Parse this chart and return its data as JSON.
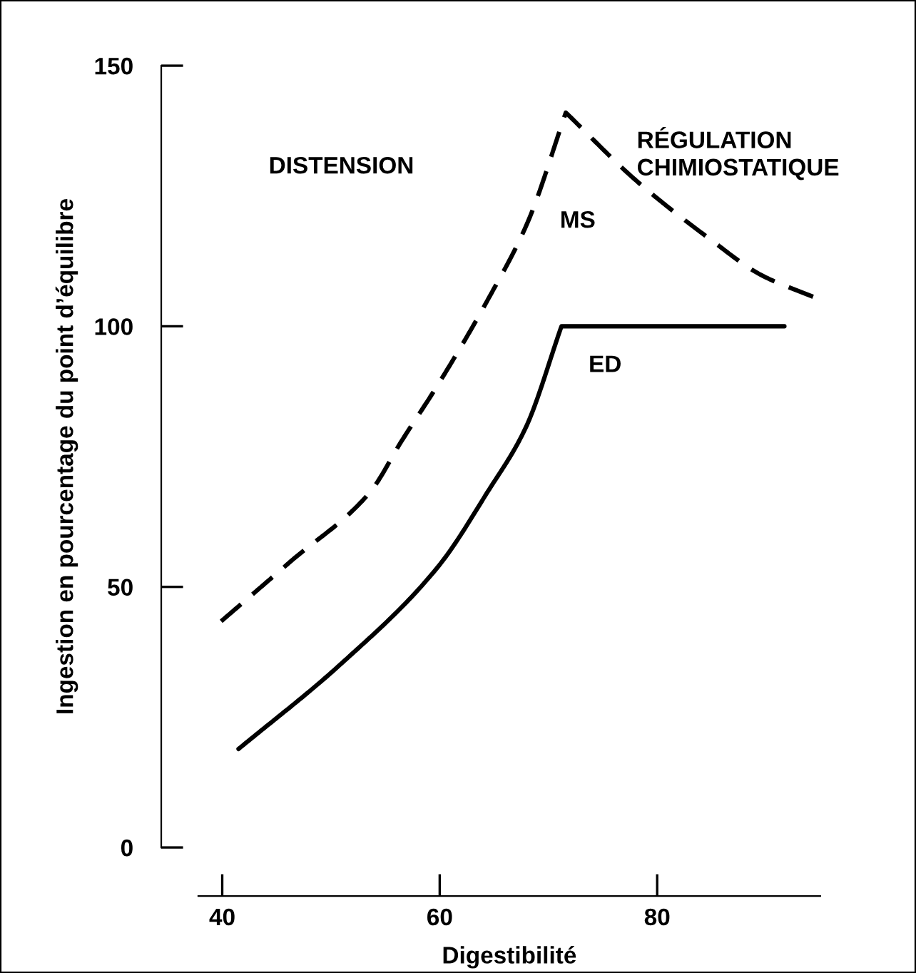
{
  "chart_data": {
    "type": "line",
    "xlabel": "Digestibilité",
    "ylabel": "Ingestion en pourcentage du point d’équilibre",
    "xlim": [
      37.8,
      95
    ],
    "ylim": [
      0,
      150
    ],
    "xticks": [
      40,
      60,
      80
    ],
    "yticks": [
      0,
      50,
      100,
      150
    ],
    "grid": false,
    "legend": false,
    "marker": "none",
    "series": [
      {
        "name": "MS",
        "color": "#000000",
        "line_style": "dashed",
        "x": [
          39.9,
          46.3,
          53.6,
          56.5,
          59.9,
          64.4,
          68.1,
          71.6,
          78.1,
          85,
          89.5,
          94.4
        ],
        "values": [
          43.4,
          54.9,
          68.2,
          78,
          89,
          105,
          120,
          141,
          127.9,
          116.5,
          109.9,
          105.6
        ]
      },
      {
        "name": "ED",
        "color": "#000000",
        "line_style": "solid",
        "x": [
          41.5,
          50.8,
          59.9,
          64.4,
          67.9,
          71.2,
          91.7
        ],
        "values": [
          18.9,
          35,
          54,
          68.2,
          80.5,
          100,
          100
        ]
      }
    ],
    "annotations": [
      "DISTENSION",
      "RÉGULATION\nCHIMIOSTATIQUE"
    ]
  }
}
